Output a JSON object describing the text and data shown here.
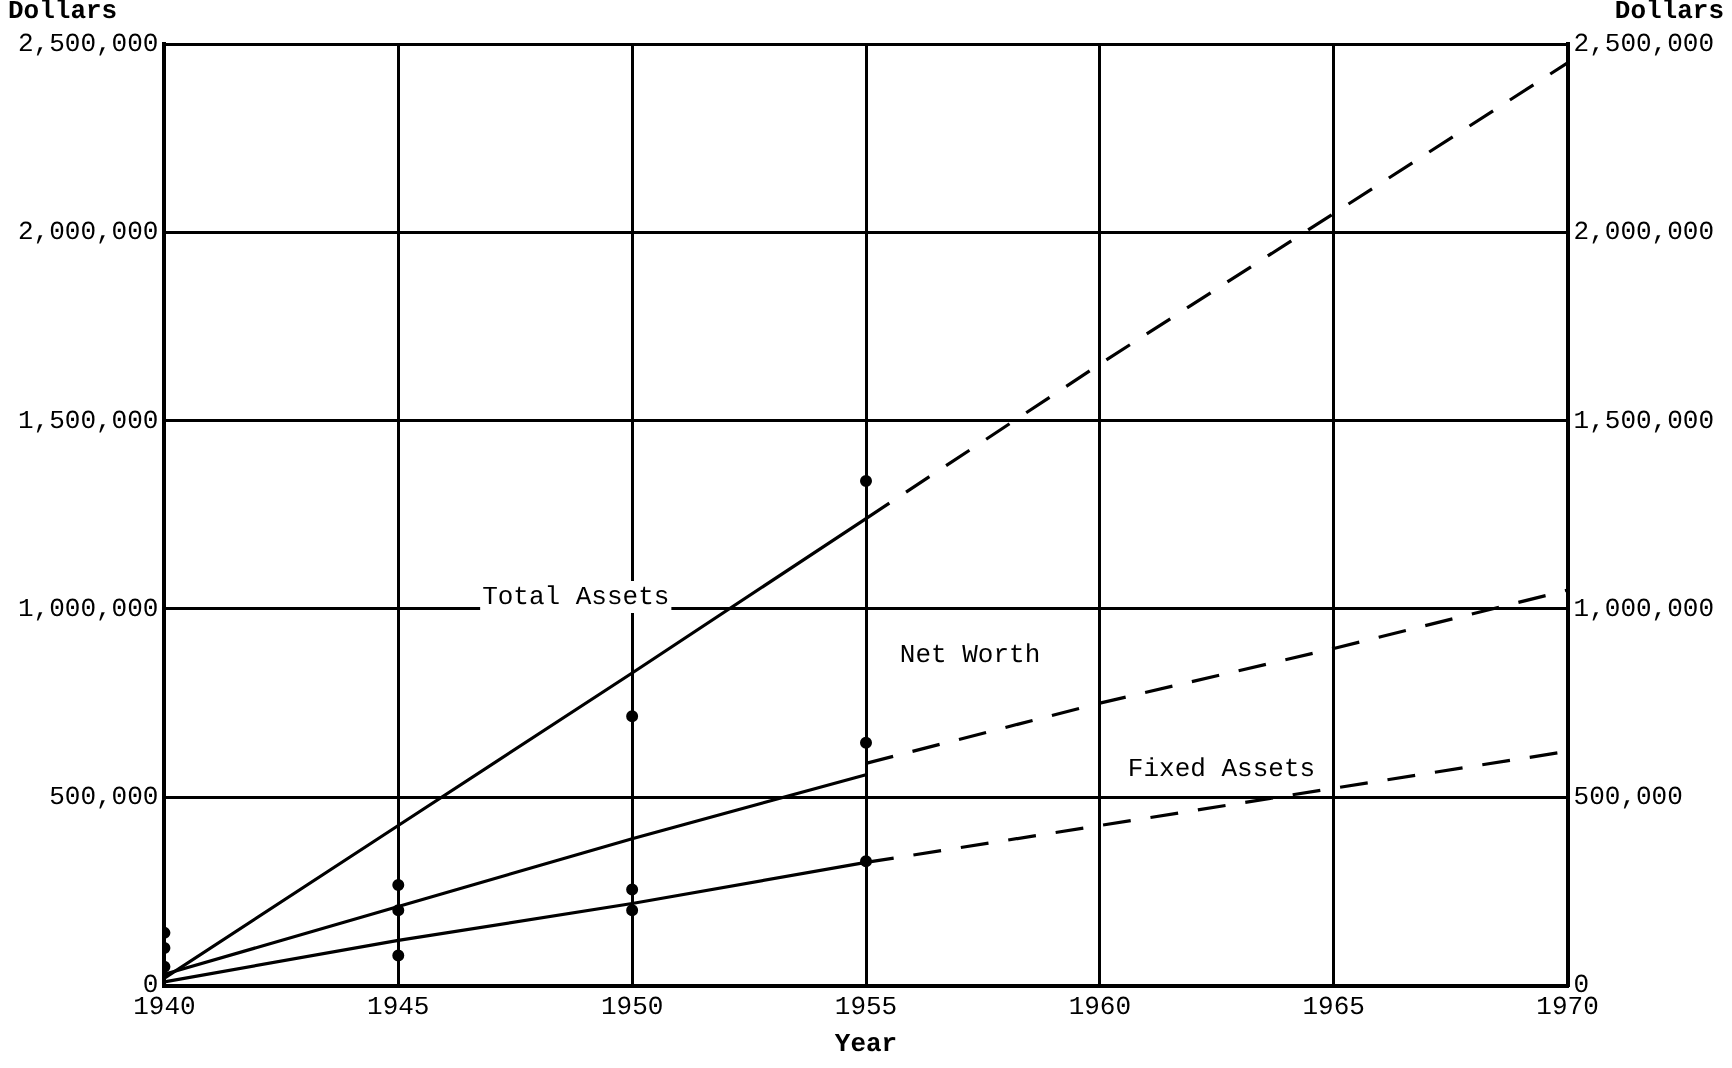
{
  "chart_data": {
    "type": "line",
    "xlabel": "Year",
    "ylabel": "Dollars",
    "y2label": "Dollars",
    "xlim": [
      1940,
      1970
    ],
    "xticks": [
      1940,
      1945,
      1950,
      1955,
      1960,
      1965,
      1970
    ],
    "ylim": [
      0,
      2500000
    ],
    "yticks": [
      {
        "value": 0,
        "label": "0"
      },
      {
        "value": 500000,
        "label": "500,000"
      },
      {
        "value": 1000000,
        "label": "1,000,000"
      },
      {
        "value": 1500000,
        "label": "1,500,000"
      },
      {
        "value": 2000000,
        "label": "2,000,000"
      },
      {
        "value": 2500000,
        "label": "2,500,000"
      }
    ],
    "y2lim": [
      0,
      2500000
    ],
    "y2ticks": [
      {
        "value": 0,
        "label": "0"
      },
      {
        "value": 500000,
        "label": "500,000"
      },
      {
        "value": 1000000,
        "label": "1,000,000"
      },
      {
        "value": 1500000,
        "label": "1,500,000"
      },
      {
        "value": 2000000,
        "label": "2,000,000"
      },
      {
        "value": 2500000,
        "label": "2,500,000"
      }
    ],
    "grid": true,
    "series": [
      {
        "name": "Total Assets",
        "color": "#000000",
        "line_style": "solid",
        "marker": "none",
        "x": [
          1940,
          1945,
          1950,
          1955
        ],
        "values": [
          20000,
          425000,
          830000,
          1240000
        ]
      },
      {
        "color": "#000000",
        "line_style": "dashed",
        "marker": "none",
        "x": [
          1955,
          1960,
          1965,
          1970
        ],
        "values": [
          1240000,
          1650000,
          2050000,
          2450000
        ]
      },
      {
        "color": "#000000",
        "line_style": "solid",
        "marker": "none",
        "x": [
          1940,
          1945,
          1950,
          1955
        ],
        "values": [
          30000,
          210000,
          390000,
          560000
        ]
      },
      {
        "name": "Net Worth",
        "color": "#000000",
        "line_style": "dashed",
        "marker": "none",
        "x": [
          1955,
          1960,
          1965,
          1970
        ],
        "values": [
          590000,
          750000,
          895000,
          1050000
        ]
      },
      {
        "color": "#000000",
        "line_style": "solid",
        "marker": "none",
        "x": [
          1940,
          1945,
          1950,
          1955
        ],
        "values": [
          10000,
          120000,
          218000,
          327000
        ]
      },
      {
        "name": "Fixed Assets",
        "color": "#000000",
        "line_style": "dashed",
        "marker": "none",
        "x": [
          1955,
          1960,
          1965,
          1970
        ],
        "values": [
          327000,
          425000,
          524000,
          622000
        ]
      },
      {
        "type": "scatter",
        "color": "#000000",
        "marker": "circle",
        "x": [
          1940,
          1940,
          1940,
          1945,
          1945,
          1945,
          1950,
          1950,
          1950,
          1955,
          1955,
          1955
        ],
        "values": [
          140000,
          100000,
          50000,
          267000,
          200000,
          80000,
          715000,
          255000,
          200000,
          1340000,
          645000,
          330000
        ]
      }
    ]
  }
}
